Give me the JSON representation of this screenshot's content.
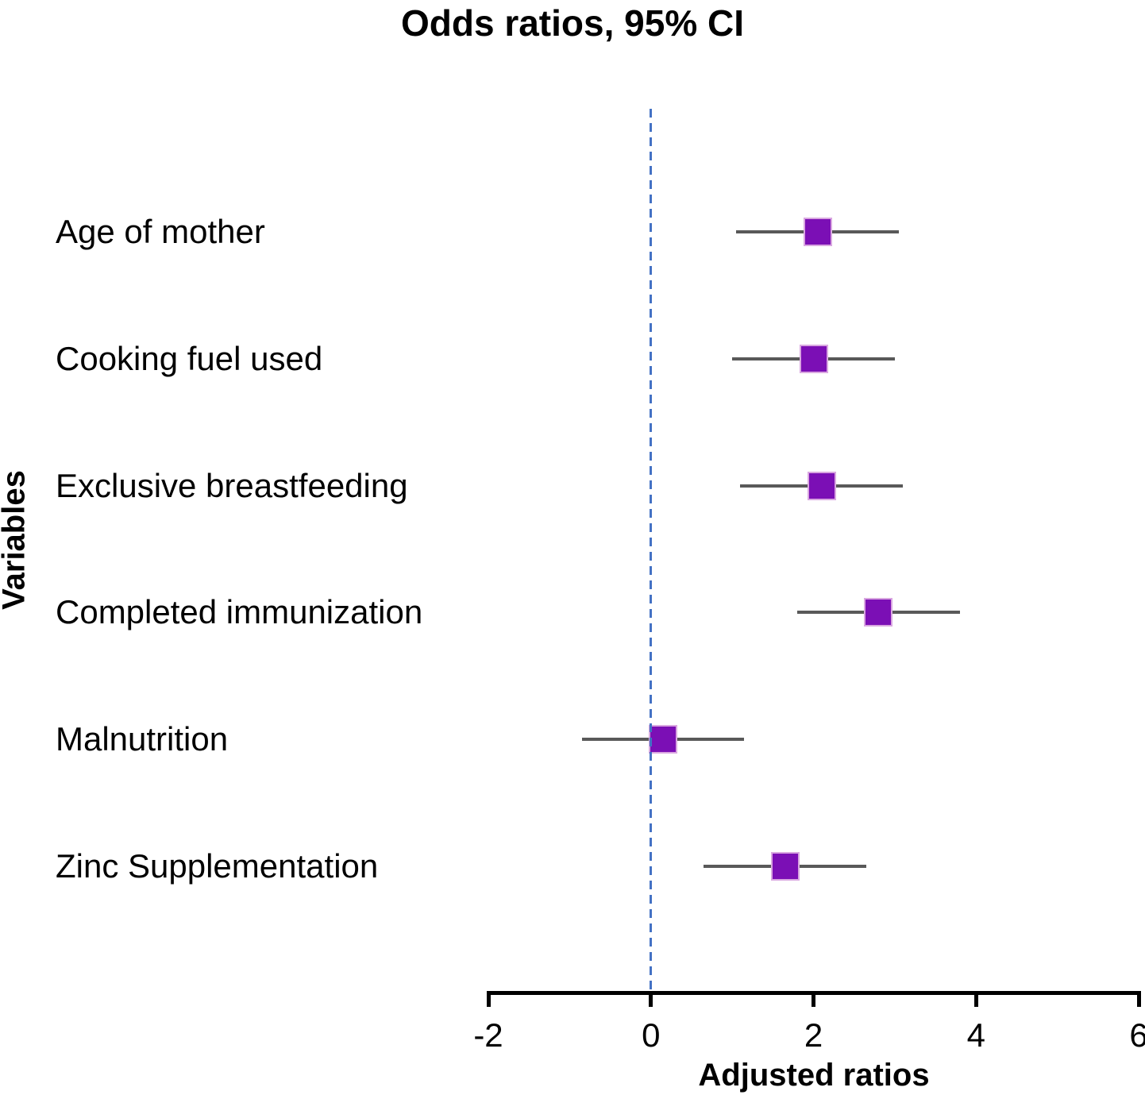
{
  "chart_data": {
    "type": "scatter",
    "subtype": "forest-plot",
    "title": "Odds ratios, 95% CI",
    "xlabel": "Adjusted ratios",
    "ylabel": "Variables",
    "xlim": [
      -2,
      6
    ],
    "x_ticks": [
      "-2",
      "0",
      "2",
      "4",
      "6"
    ],
    "x_tick_values": [
      -2,
      0,
      2,
      4,
      6
    ],
    "reference_line_x": 0,
    "grid": false,
    "legend": "none",
    "categories": [
      "Age of mother",
      "Cooking fuel used",
      "Exclusive breastfeeding",
      "Completed immunization",
      "Malnutrition",
      "Zinc Supplementation"
    ],
    "points": [
      {
        "label": "Age of mother",
        "odds_ratio": 2.05,
        "ci_low": 1.05,
        "ci_high": 3.05
      },
      {
        "label": "Cooking fuel used",
        "odds_ratio": 2.0,
        "ci_low": 1.0,
        "ci_high": 3.0
      },
      {
        "label": "Exclusive breastfeeding",
        "odds_ratio": 2.1,
        "ci_low": 1.1,
        "ci_high": 3.1
      },
      {
        "label": "Completed immunization",
        "odds_ratio": 2.8,
        "ci_low": 1.8,
        "ci_high": 3.8
      },
      {
        "label": "Malnutrition",
        "odds_ratio": 0.15,
        "ci_low": -0.85,
        "ci_high": 1.15
      },
      {
        "label": "Zinc Supplementation",
        "odds_ratio": 1.65,
        "ci_low": 0.65,
        "ci_high": 2.65
      }
    ],
    "colors": {
      "marker": "#7b0fb5",
      "marker_border": "#d9a7e0",
      "ci_line": "#595959",
      "reference_line": "#4472c4",
      "axis": "#000000",
      "text": "#000000",
      "background": "#ffffff"
    }
  }
}
